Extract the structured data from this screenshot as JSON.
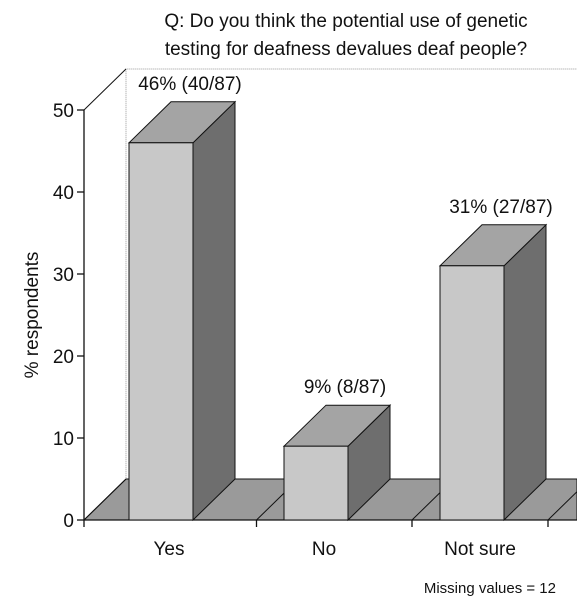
{
  "chart_data": {
    "type": "bar",
    "title_lines": [
      "Q: Do you think the potential use of genetic",
      "testing for deafness devalues deaf people?"
    ],
    "xlabel": "",
    "ylabel": "% respondents",
    "ylim": [
      0,
      50
    ],
    "yticks": [
      0,
      10,
      20,
      30,
      40,
      50
    ],
    "categories": [
      "Yes",
      "No",
      "Not sure"
    ],
    "values": [
      46,
      9,
      31
    ],
    "data_labels": [
      "46% (40/87)",
      "9% (8/87)",
      "31% (27/87)"
    ],
    "footnote": "Missing values = 12",
    "style": "3d",
    "grid": false,
    "colors": {
      "bar_front": "#c8c8c8",
      "bar_side": "#6e6e6e",
      "bar_top": "#a4a4a4",
      "floor": "#9a9a9a",
      "axis": "#111111"
    }
  }
}
